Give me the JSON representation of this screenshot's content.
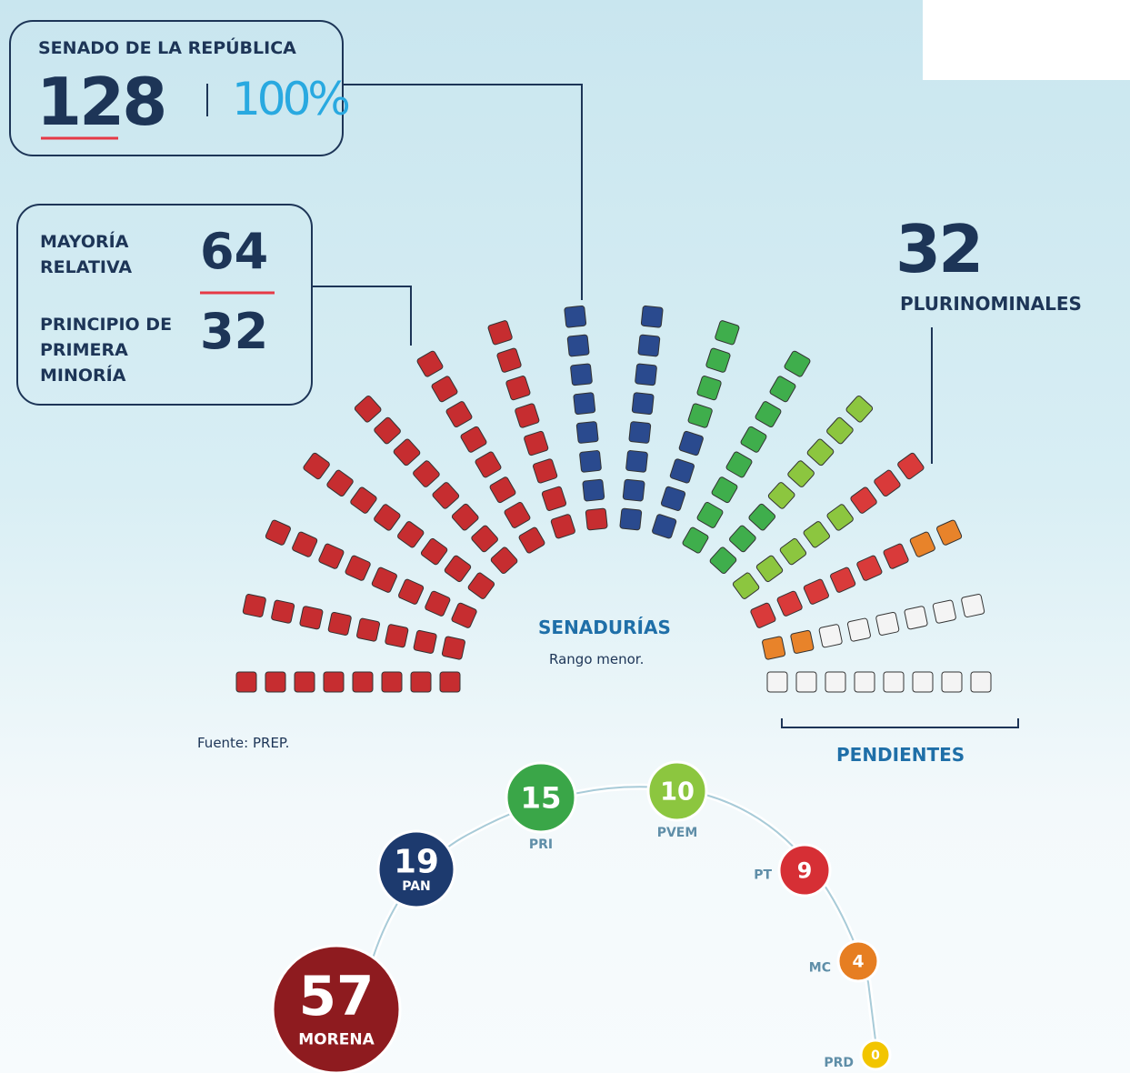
{
  "header": {
    "title": "SENADO DE LA REPÚBLICA",
    "total": 128,
    "percent": "100%"
  },
  "breakdown": [
    {
      "label": "MAYORÍA RELATIVA",
      "value": 64
    },
    {
      "label": "PRINCIPIO DE PRIMERA MINORÍA",
      "value": 32
    }
  ],
  "plurinominales": {
    "value": 32,
    "label": "PLURINOMINALES"
  },
  "seats": {
    "title": "SENADURÍAS",
    "subtitle": "Rango menor.",
    "pending_label": "PENDIENTES"
  },
  "source": "Fuente: PREP.",
  "parties": [
    {
      "name": "MORENA",
      "seats": 57,
      "color": "#8e1b1f",
      "seat_color": "#c62d30"
    },
    {
      "name": "PAN",
      "seats": 19,
      "color": "#1d3a6e",
      "seat_color": "#2a4a8e"
    },
    {
      "name": "PRI",
      "seats": 15,
      "color": "#3aa648",
      "seat_color": "#3fae4c"
    },
    {
      "name": "PVEM",
      "seats": 10,
      "color": "#8cc63f",
      "seat_color": "#8cc63f"
    },
    {
      "name": "PT",
      "seats": 9,
      "color": "#d62f35",
      "seat_color": "#d93a3a"
    },
    {
      "name": "MC",
      "seats": 4,
      "color": "#e67e22",
      "seat_color": "#e8832a"
    },
    {
      "name": "PRD",
      "seats": 0,
      "color": "#f2c500",
      "seat_color": "#f2c500"
    }
  ]
}
